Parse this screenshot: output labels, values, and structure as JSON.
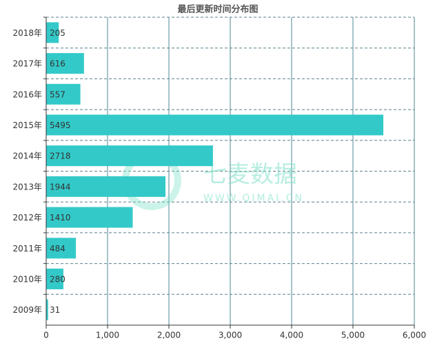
{
  "chart_data": {
    "type": "hbar",
    "title": "最后更新时间分布图",
    "categories": [
      "2018年",
      "2017年",
      "2016年",
      "2015年",
      "2014年",
      "2013年",
      "2012年",
      "2011年",
      "2010年",
      "2009年"
    ],
    "values": [
      205,
      616,
      557,
      5495,
      2718,
      1944,
      1410,
      484,
      280,
      31
    ],
    "color": "#33c9c9",
    "xlim": [
      0,
      6000
    ],
    "xticks": [
      0,
      {
        "value": 1000,
        "label": "1,000"
      },
      {
        "value": 2000,
        "label": "2,000"
      },
      {
        "value": 3000,
        "label": "3,000"
      },
      {
        "value": 4000,
        "label": "4,000"
      },
      {
        "value": 5000,
        "label": "5,000"
      },
      {
        "value": 6000,
        "label": "6,000"
      }
    ],
    "grid": true,
    "watermark": {
      "name": "七麦数据",
      "url": "WWW.QIMAI.CN"
    }
  }
}
